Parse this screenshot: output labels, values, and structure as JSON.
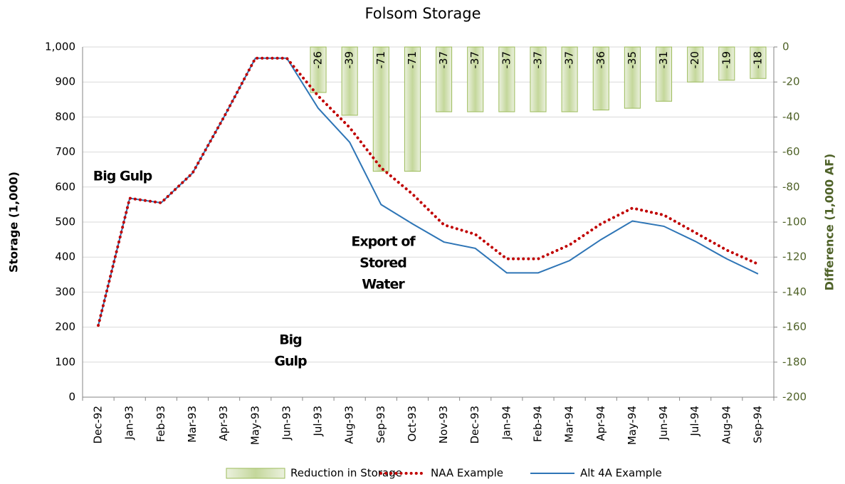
{
  "chart_data": {
    "type": "combo",
    "title": "Folsom Storage",
    "ylabel": "Storage (1,000)",
    "y2label": "Difference (1,000 AF)",
    "categories": [
      "Dec-92",
      "Jan-93",
      "Feb-93",
      "Mar-93",
      "Apr-93",
      "May-93",
      "Jun-93",
      "Jul-93",
      "Aug-93",
      "Sep-93",
      "Oct-93",
      "Nov-93",
      "Dec-93",
      "Jan-94",
      "Feb-94",
      "Mar-94",
      "Apr-94",
      "May-94",
      "Jun-94",
      "Jul-94",
      "Aug-94",
      "Sep-94"
    ],
    "series": [
      {
        "name": "Reduction in Storage",
        "type": "bar",
        "axis": "y2",
        "color": "#d7e4bd",
        "edge": "#9bbb59",
        "values": [
          null,
          null,
          null,
          null,
          null,
          null,
          null,
          -26,
          -39,
          -71,
          -71,
          -37,
          -37,
          -37,
          -37,
          -37,
          -36,
          -35,
          -31,
          -20,
          -19,
          -18
        ]
      },
      {
        "name": "Alt 4A Example",
        "type": "line",
        "color": "#2e75b6",
        "values": [
          205,
          568,
          555,
          640,
          800,
          968,
          968,
          825,
          728,
          550,
          495,
          443,
          425,
          355,
          355,
          390,
          450,
          503,
          488,
          445,
          395,
          352
        ]
      },
      {
        "name": "NAA Example",
        "type": "line",
        "style": "dotted",
        "color": "#c00000",
        "values": [
          205,
          568,
          555,
          640,
          800,
          968,
          968,
          860,
          770,
          655,
          580,
          492,
          465,
          395,
          395,
          435,
          495,
          540,
          520,
          470,
          420,
          380
        ]
      }
    ],
    "legend_order": [
      0,
      2,
      1
    ],
    "ylim": [
      0,
      1000
    ],
    "yticks": [
      0,
      100,
      200,
      300,
      400,
      500,
      600,
      700,
      800,
      900,
      {
        "value": 1000,
        "label": "1,000"
      }
    ],
    "y2lim": [
      -200,
      0
    ],
    "y2ticks": [
      -200,
      -180,
      -160,
      -140,
      -120,
      -100,
      -80,
      -60,
      -40,
      -20,
      0
    ],
    "grid": true,
    "annotations": [
      {
        "lines": [
          "Big Gulp"
        ]
      },
      {
        "lines": [
          "Big",
          "Gulp"
        ]
      },
      {
        "lines": [
          "Export of",
          "Stored",
          "Water"
        ]
      }
    ]
  }
}
